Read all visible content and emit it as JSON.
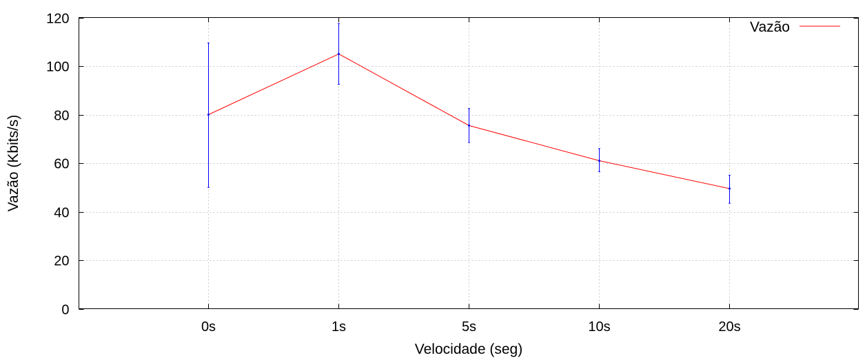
{
  "chart_data": {
    "type": "line",
    "title": "",
    "xlabel": "Velocidade (seg)",
    "ylabel": "Vazão (Kbits/s)",
    "categories": [
      "0s",
      "1s",
      "5s",
      "10s",
      "20s"
    ],
    "ylim": [
      0,
      120
    ],
    "yticks": [
      "0",
      "20",
      "40",
      "60",
      "80",
      "100",
      "120"
    ],
    "grid": true,
    "legend_position": "top-right",
    "series": [
      {
        "name": "Vazão",
        "values": [
          80,
          105,
          75.5,
          61,
          49.5
        ],
        "error_low": [
          50,
          92.5,
          68.5,
          56.5,
          43.5
        ],
        "error_high": [
          109.5,
          117.5,
          82.5,
          66,
          55
        ],
        "line_color": "#ff0000",
        "error_color": "#0000ff"
      }
    ]
  }
}
